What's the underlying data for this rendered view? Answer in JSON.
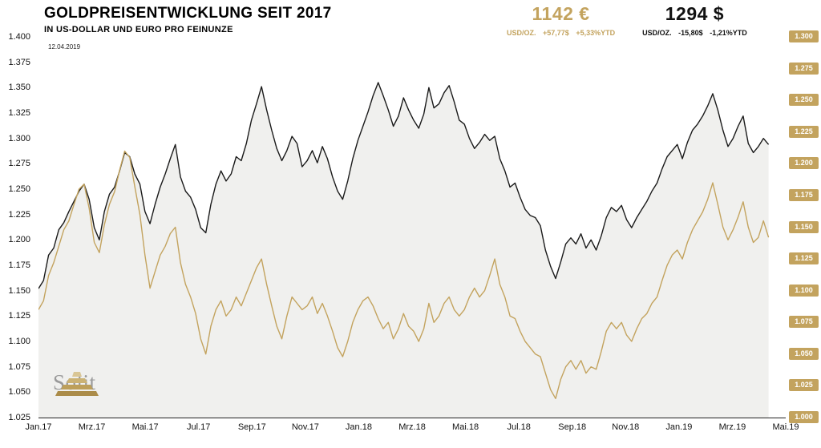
{
  "header": {
    "title": "GOLDPREISENTWICKLUNG SEIT 2017",
    "subtitle": "IN US-DOLLAR UND EURO PRO FEINUNZE",
    "eur": {
      "price": "1142 €",
      "unit": "USD/OZ.",
      "change": "+57,77$",
      "change_pct": "+5,33%YTD"
    },
    "usd": {
      "price": "1294 $",
      "unit": "USD/OZ.",
      "change": "-15,80$",
      "change_pct": "-1,21%YTD"
    }
  },
  "annotation_date": "12.04.2019",
  "brand": "Solit",
  "colors": {
    "gold": "#C3A35E",
    "black_line": "#1a1a1a",
    "area_fill": "#f0f0ee"
  },
  "chart_data": {
    "type": "line",
    "title": "Goldpreisentwicklung seit 2017 in US-Dollar und Euro pro Feinunze",
    "x_labels": [
      "Jan.17",
      "Mrz.17",
      "Mai.17",
      "Jul.17",
      "Sep.17",
      "Nov.17",
      "Jan.18",
      "Mrz.18",
      "Mai.18",
      "Jul.18",
      "Sep.18",
      "Nov.18",
      "Jan.19",
      "Mrz.19",
      "Mai.19"
    ],
    "left_axis": {
      "series": "USD",
      "min": 1025,
      "max": 1400,
      "ticks": [
        "1.400",
        "1.375",
        "1.350",
        "1.325",
        "1.300",
        "1.275",
        "1.250",
        "1.225",
        "1.200",
        "1.175",
        "1.150",
        "1.125",
        "1.100",
        "1.075",
        "1.050",
        "1.025"
      ]
    },
    "right_axis": {
      "series": "EUR",
      "min": 1000,
      "max": 1300,
      "ticks": [
        "1.300",
        "1.275",
        "1.250",
        "1.225",
        "1.200",
        "1.175",
        "1.150",
        "1.125",
        "1.100",
        "1.075",
        "1.050",
        "1.025",
        "1.000"
      ]
    },
    "series_end_fraction": 0.977,
    "series": [
      {
        "name": "USD",
        "axis": "left",
        "color": "#1a1a1a",
        "fill": "#f0f0ee",
        "values": [
          1152,
          1160,
          1185,
          1192,
          1210,
          1217,
          1228,
          1238,
          1248,
          1255,
          1240,
          1212,
          1200,
          1228,
          1245,
          1252,
          1268,
          1286,
          1282,
          1265,
          1255,
          1228,
          1216,
          1235,
          1252,
          1265,
          1280,
          1294,
          1262,
          1248,
          1242,
          1230,
          1212,
          1207,
          1235,
          1255,
          1268,
          1258,
          1265,
          1282,
          1278,
          1295,
          1318,
          1334,
          1351,
          1328,
          1308,
          1290,
          1278,
          1288,
          1302,
          1295,
          1272,
          1278,
          1288,
          1276,
          1292,
          1280,
          1262,
          1248,
          1240,
          1258,
          1280,
          1298,
          1312,
          1326,
          1342,
          1355,
          1342,
          1328,
          1312,
          1322,
          1340,
          1328,
          1318,
          1310,
          1324,
          1350,
          1330,
          1334,
          1345,
          1352,
          1336,
          1318,
          1314,
          1300,
          1290,
          1296,
          1304,
          1298,
          1302,
          1280,
          1268,
          1252,
          1256,
          1242,
          1230,
          1224,
          1222,
          1214,
          1190,
          1174,
          1162,
          1178,
          1196,
          1202,
          1196,
          1206,
          1192,
          1200,
          1190,
          1204,
          1222,
          1232,
          1228,
          1234,
          1220,
          1212,
          1222,
          1230,
          1238,
          1248,
          1256,
          1270,
          1282,
          1288,
          1294,
          1280,
          1296,
          1308,
          1314,
          1322,
          1332,
          1344,
          1328,
          1308,
          1292,
          1300,
          1312,
          1322,
          1295,
          1286,
          1292,
          1300,
          1294
        ]
      },
      {
        "name": "EUR",
        "axis": "right",
        "color": "#C3A35E",
        "values": [
          1085,
          1092,
          1112,
          1122,
          1135,
          1148,
          1155,
          1168,
          1180,
          1184,
          1165,
          1138,
          1130,
          1152,
          1168,
          1178,
          1195,
          1210,
          1205,
          1182,
          1160,
          1128,
          1102,
          1115,
          1128,
          1135,
          1145,
          1150,
          1122,
          1105,
          1095,
          1082,
          1062,
          1050,
          1072,
          1085,
          1092,
          1080,
          1085,
          1095,
          1088,
          1098,
          1108,
          1118,
          1125,
          1105,
          1088,
          1072,
          1062,
          1080,
          1095,
          1090,
          1085,
          1088,
          1095,
          1082,
          1090,
          1080,
          1068,
          1055,
          1048,
          1060,
          1075,
          1085,
          1092,
          1095,
          1088,
          1078,
          1070,
          1075,
          1062,
          1070,
          1082,
          1072,
          1068,
          1060,
          1070,
          1090,
          1075,
          1080,
          1090,
          1095,
          1085,
          1080,
          1085,
          1095,
          1102,
          1095,
          1100,
          1112,
          1125,
          1105,
          1095,
          1080,
          1078,
          1068,
          1060,
          1055,
          1050,
          1048,
          1035,
          1022,
          1015,
          1030,
          1040,
          1045,
          1038,
          1045,
          1035,
          1040,
          1038,
          1052,
          1068,
          1075,
          1070,
          1075,
          1065,
          1060,
          1070,
          1078,
          1082,
          1090,
          1095,
          1108,
          1120,
          1128,
          1132,
          1125,
          1138,
          1148,
          1155,
          1162,
          1172,
          1185,
          1168,
          1150,
          1140,
          1148,
          1158,
          1170,
          1150,
          1138,
          1142,
          1155,
          1142
        ]
      }
    ]
  }
}
